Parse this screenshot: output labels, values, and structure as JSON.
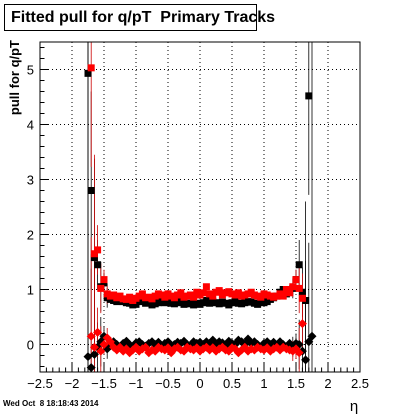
{
  "title": "Fitted pull for q/pT  Primary Tracks",
  "timestamp": "Wed Oct  8 18:18:43 2014",
  "chart_data": {
    "type": "scatter",
    "title": "Fitted pull for q/pT  Primary Tracks",
    "xlabel": "η",
    "ylabel": "pull for q/pT",
    "xlim": [
      -2.5,
      2.5
    ],
    "ylim": [
      -0.5,
      5.5
    ],
    "xticks": [
      "−2.5",
      "−2",
      "−1.5",
      "−1",
      "−0.5",
      "0",
      "0.5",
      "1",
      "1.5",
      "2",
      "2.5"
    ],
    "yticks": [
      "0",
      "1",
      "2",
      "3",
      "4",
      "5"
    ],
    "grid": true,
    "series": [
      {
        "color": "#000000",
        "marker": "square",
        "x": [
          -1.75,
          -1.7,
          -1.65,
          -1.6,
          -1.55,
          -1.5,
          -1.45,
          -1.4,
          -1.35,
          -1.3,
          -1.25,
          -1.2,
          -1.15,
          -1.1,
          -1.05,
          -1.0,
          -0.95,
          -0.9,
          -0.85,
          -0.8,
          -0.75,
          -0.7,
          -0.65,
          -0.6,
          -0.55,
          -0.5,
          -0.45,
          -0.4,
          -0.35,
          -0.3,
          -0.25,
          -0.2,
          -0.15,
          -0.1,
          -0.05,
          0.0,
          0.05,
          0.1,
          0.15,
          0.2,
          0.25,
          0.3,
          0.35,
          0.4,
          0.45,
          0.5,
          0.55,
          0.6,
          0.65,
          0.7,
          0.75,
          0.8,
          0.85,
          0.9,
          0.95,
          1.0,
          1.05,
          1.1,
          1.15,
          1.2,
          1.25,
          1.3,
          1.35,
          1.4,
          1.45,
          1.5,
          1.55,
          1.6,
          1.65,
          1.7
        ],
        "y": [
          4.93,
          2.8,
          1.58,
          1.45,
          1.05,
          1.12,
          0.85,
          0.82,
          0.8,
          0.78,
          0.82,
          0.78,
          0.76,
          0.75,
          0.72,
          0.73,
          0.78,
          0.8,
          0.75,
          0.77,
          0.72,
          0.74,
          0.76,
          0.78,
          0.76,
          0.8,
          0.75,
          0.74,
          0.78,
          0.76,
          0.73,
          0.75,
          0.74,
          0.72,
          0.75,
          0.73,
          0.76,
          0.8,
          0.75,
          0.78,
          0.76,
          0.74,
          0.77,
          0.75,
          0.72,
          0.76,
          0.78,
          0.75,
          0.74,
          0.76,
          0.78,
          0.77,
          0.75,
          0.73,
          0.8,
          0.76,
          0.78,
          0.82,
          0.85,
          0.88,
          0.95,
          1.0,
          0.92,
          0.98,
          1.02,
          1.18,
          1.45,
          0.95,
          0.8,
          4.52
        ]
      },
      {
        "color": "#ff0000",
        "marker": "square",
        "x": [
          -1.7,
          -1.65,
          -1.6,
          -1.55,
          -1.5,
          -1.45,
          -1.4,
          -1.35,
          -1.3,
          -1.25,
          -1.2,
          -1.15,
          -1.1,
          -1.05,
          -1.0,
          -0.95,
          -0.9,
          -0.85,
          -0.8,
          -0.75,
          -0.7,
          -0.65,
          -0.6,
          -0.55,
          -0.5,
          -0.45,
          -0.4,
          -0.35,
          -0.3,
          -0.25,
          -0.2,
          -0.15,
          -0.1,
          -0.05,
          0.0,
          0.05,
          0.1,
          0.15,
          0.2,
          0.25,
          0.3,
          0.35,
          0.4,
          0.45,
          0.5,
          0.55,
          0.6,
          0.65,
          0.7,
          0.75,
          0.8,
          0.85,
          0.9,
          0.95,
          1.0,
          1.05,
          1.1,
          1.15,
          1.2,
          1.25,
          1.3,
          1.35,
          1.4,
          1.45,
          1.5,
          1.55,
          1.6
        ],
        "y": [
          5.03,
          1.65,
          1.72,
          1.02,
          1.18,
          0.92,
          0.88,
          0.9,
          0.85,
          0.88,
          0.83,
          0.82,
          0.86,
          0.8,
          0.84,
          0.88,
          0.92,
          0.85,
          0.86,
          0.83,
          0.88,
          0.92,
          0.9,
          0.86,
          0.92,
          0.88,
          0.85,
          0.9,
          0.94,
          0.86,
          0.88,
          0.9,
          0.86,
          0.95,
          0.9,
          0.94,
          1.05,
          0.92,
          0.88,
          0.95,
          0.98,
          0.9,
          0.94,
          0.96,
          0.92,
          0.9,
          0.94,
          0.88,
          0.9,
          0.92,
          0.95,
          0.9,
          0.88,
          0.86,
          0.92,
          0.9,
          0.88,
          0.86,
          0.88,
          0.92,
          0.88,
          1.0,
          0.94,
          1.05,
          1.18,
          1.02,
          0.84
        ]
      },
      {
        "color": "#000000",
        "marker": "diamond",
        "x": [
          -1.75,
          -1.7,
          -1.65,
          -1.6,
          -1.55,
          -1.5,
          -1.45,
          -1.4,
          -1.35,
          -1.3,
          -1.25,
          -1.2,
          -1.15,
          -1.1,
          -1.05,
          -1.0,
          -0.95,
          -0.9,
          -0.85,
          -0.8,
          -0.75,
          -0.7,
          -0.65,
          -0.6,
          -0.55,
          -0.5,
          -0.45,
          -0.4,
          -0.35,
          -0.3,
          -0.25,
          -0.2,
          -0.15,
          -0.1,
          -0.05,
          0.0,
          0.05,
          0.1,
          0.15,
          0.2,
          0.25,
          0.3,
          0.35,
          0.4,
          0.45,
          0.5,
          0.55,
          0.6,
          0.65,
          0.7,
          0.75,
          0.8,
          0.85,
          0.9,
          0.95,
          1.0,
          1.05,
          1.1,
          1.15,
          1.2,
          1.25,
          1.3,
          1.35,
          1.4,
          1.45,
          1.5,
          1.55,
          1.6,
          1.65,
          1.7,
          1.75
        ],
        "y": [
          -0.22,
          -0.42,
          -0.18,
          -0.05,
          0.05,
          0.15,
          -0.08,
          -0.02,
          0.05,
          0.0,
          -0.04,
          0.02,
          0.06,
          0.0,
          -0.05,
          0.03,
          0.05,
          0.0,
          -0.03,
          0.02,
          0.05,
          0.0,
          0.04,
          -0.04,
          0.02,
          0.05,
          -0.02,
          0.0,
          0.04,
          0.02,
          0.06,
          0.0,
          -0.02,
          0.05,
          0.02,
          0.04,
          0.0,
          0.05,
          0.02,
          0.08,
          0.0,
          0.05,
          0.03,
          -0.02,
          0.06,
          0.02,
          0.0,
          0.08,
          0.05,
          0.0,
          0.1,
          0.02,
          0.05,
          0.0,
          -0.05,
          0.02,
          0.05,
          0.0,
          0.04,
          -0.02,
          0.05,
          0.0,
          -0.05,
          0.02,
          -0.04,
          0.02,
          0.0,
          -0.12,
          -0.28,
          0.05,
          0.15
        ]
      },
      {
        "color": "#ff0000",
        "marker": "diamond",
        "x": [
          -1.7,
          -1.65,
          -1.6,
          -1.55,
          -1.5,
          -1.45,
          -1.4,
          -1.35,
          -1.3,
          -1.25,
          -1.2,
          -1.15,
          -1.1,
          -1.05,
          -1.0,
          -0.95,
          -0.9,
          -0.85,
          -0.8,
          -0.75,
          -0.7,
          -0.65,
          -0.6,
          -0.55,
          -0.5,
          -0.45,
          -0.4,
          -0.35,
          -0.3,
          -0.25,
          -0.2,
          -0.15,
          -0.1,
          -0.05,
          0.0,
          0.05,
          0.1,
          0.15,
          0.2,
          0.25,
          0.3,
          0.35,
          0.4,
          0.45,
          0.5,
          0.55,
          0.6,
          0.65,
          0.7,
          0.75,
          0.8,
          0.85,
          0.9,
          0.95,
          1.0,
          1.05,
          1.1,
          1.15,
          1.2,
          1.25,
          1.3,
          1.35,
          1.4,
          1.45,
          1.5,
          1.55,
          1.6
        ],
        "y": [
          0.15,
          -0.05,
          0.22,
          -0.12,
          0.0,
          0.12,
          0.05,
          -0.05,
          -0.1,
          -0.05,
          -0.12,
          -0.08,
          -0.15,
          -0.1,
          -0.05,
          -0.12,
          -0.08,
          -0.05,
          -0.15,
          -0.1,
          -0.12,
          -0.05,
          -0.08,
          -0.1,
          -0.06,
          -0.15,
          -0.08,
          -0.05,
          -0.1,
          -0.12,
          -0.05,
          -0.08,
          -0.1,
          -0.06,
          -0.12,
          -0.08,
          -0.05,
          -0.1,
          -0.06,
          -0.12,
          -0.08,
          -0.05,
          -0.1,
          -0.12,
          -0.06,
          -0.08,
          -0.15,
          -0.1,
          -0.05,
          -0.12,
          -0.08,
          -0.1,
          -0.05,
          -0.08,
          -0.1,
          -0.06,
          -0.12,
          -0.08,
          -0.05,
          -0.1,
          -0.05,
          -0.08,
          -0.1,
          -0.12,
          -0.08,
          -0.15,
          0.38
        ]
      }
    ]
  }
}
